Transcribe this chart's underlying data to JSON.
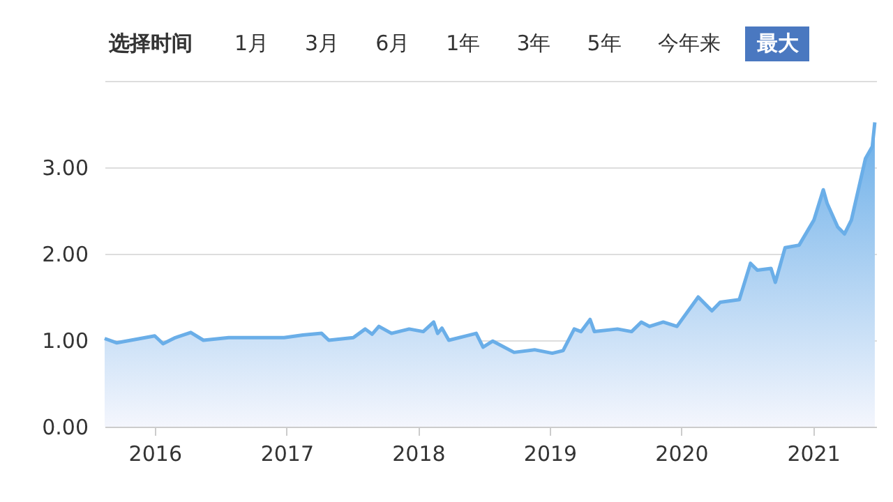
{
  "chart_data": {
    "type": "area",
    "annotations": [
      "选择时间",
      "1月",
      "3月",
      "6月",
      "1年",
      "3年",
      "5年",
      "今年来",
      "最大"
    ],
    "x": [
      "2015-08-15",
      "2015-09-17",
      "2016-01-01",
      "2016-01-24",
      "2016-02-27",
      "2016-04-10",
      "2016-05-15",
      "2016-07-24",
      "2016-12-25",
      "2017-02-15",
      "2017-04-08",
      "2017-04-28",
      "2017-07-05",
      "2017-08-07",
      "2017-08-26",
      "2017-09-14",
      "2017-10-19",
      "2017-12-07",
      "2018-01-15",
      "2018-02-13",
      "2018-02-24",
      "2018-03-08",
      "2018-03-27",
      "2018-05-23",
      "2018-06-11",
      "2018-06-30",
      "2018-07-27",
      "2018-09-24",
      "2018-11-20",
      "2019-01-08",
      "2019-02-07",
      "2019-03-10",
      "2019-03-29",
      "2019-04-23",
      "2019-05-05",
      "2019-07-08",
      "2019-08-16",
      "2019-09-12",
      "2019-10-05",
      "2019-11-12",
      "2019-12-20",
      "2020-02-17",
      "2020-03-26",
      "2020-04-18",
      "2020-06-10",
      "2020-07-11",
      "2020-07-30",
      "2020-09-06",
      "2020-09-18",
      "2020-10-15",
      "2020-11-23",
      "2021-01-03",
      "2021-01-29",
      "2021-02-09",
      "2021-03-10",
      "2021-03-29",
      "2021-04-17",
      "2021-05-26",
      "2021-06-14",
      "2021-06-21"
    ],
    "series": [
      {
        "color": "#6aaee8",
        "values": [
          1.02,
          0.97,
          1.05,
          0.96,
          1.03,
          1.09,
          1.0,
          1.03,
          1.03,
          1.06,
          1.08,
          1.0,
          1.03,
          1.13,
          1.07,
          1.16,
          1.08,
          1.13,
          1.1,
          1.21,
          1.08,
          1.14,
          1.0,
          1.06,
          1.08,
          0.92,
          0.99,
          0.86,
          0.89,
          0.85,
          0.88,
          1.13,
          1.1,
          1.24,
          1.1,
          1.13,
          1.1,
          1.21,
          1.16,
          1.21,
          1.16,
          1.5,
          1.34,
          1.44,
          1.47,
          1.89,
          1.81,
          1.83,
          1.67,
          2.07,
          2.1,
          2.39,
          2.74,
          2.58,
          2.31,
          2.23,
          2.39,
          3.1,
          3.24,
          3.52
        ]
      }
    ],
    "xlim": [
      "2015-08-15",
      "2021-06-25"
    ],
    "xticks": [
      "2016",
      "2017",
      "2018",
      "2019",
      "2020",
      "2021"
    ],
    "ylim": [
      0,
      4
    ],
    "yticks": [
      {
        "value": 0,
        "label": "0.00"
      },
      {
        "value": 1,
        "label": "1.00"
      },
      {
        "value": 2,
        "label": "2.00"
      },
      {
        "value": 3,
        "label": "3.00"
      },
      {
        "value": 4,
        "label": null
      }
    ],
    "grid": "y"
  }
}
